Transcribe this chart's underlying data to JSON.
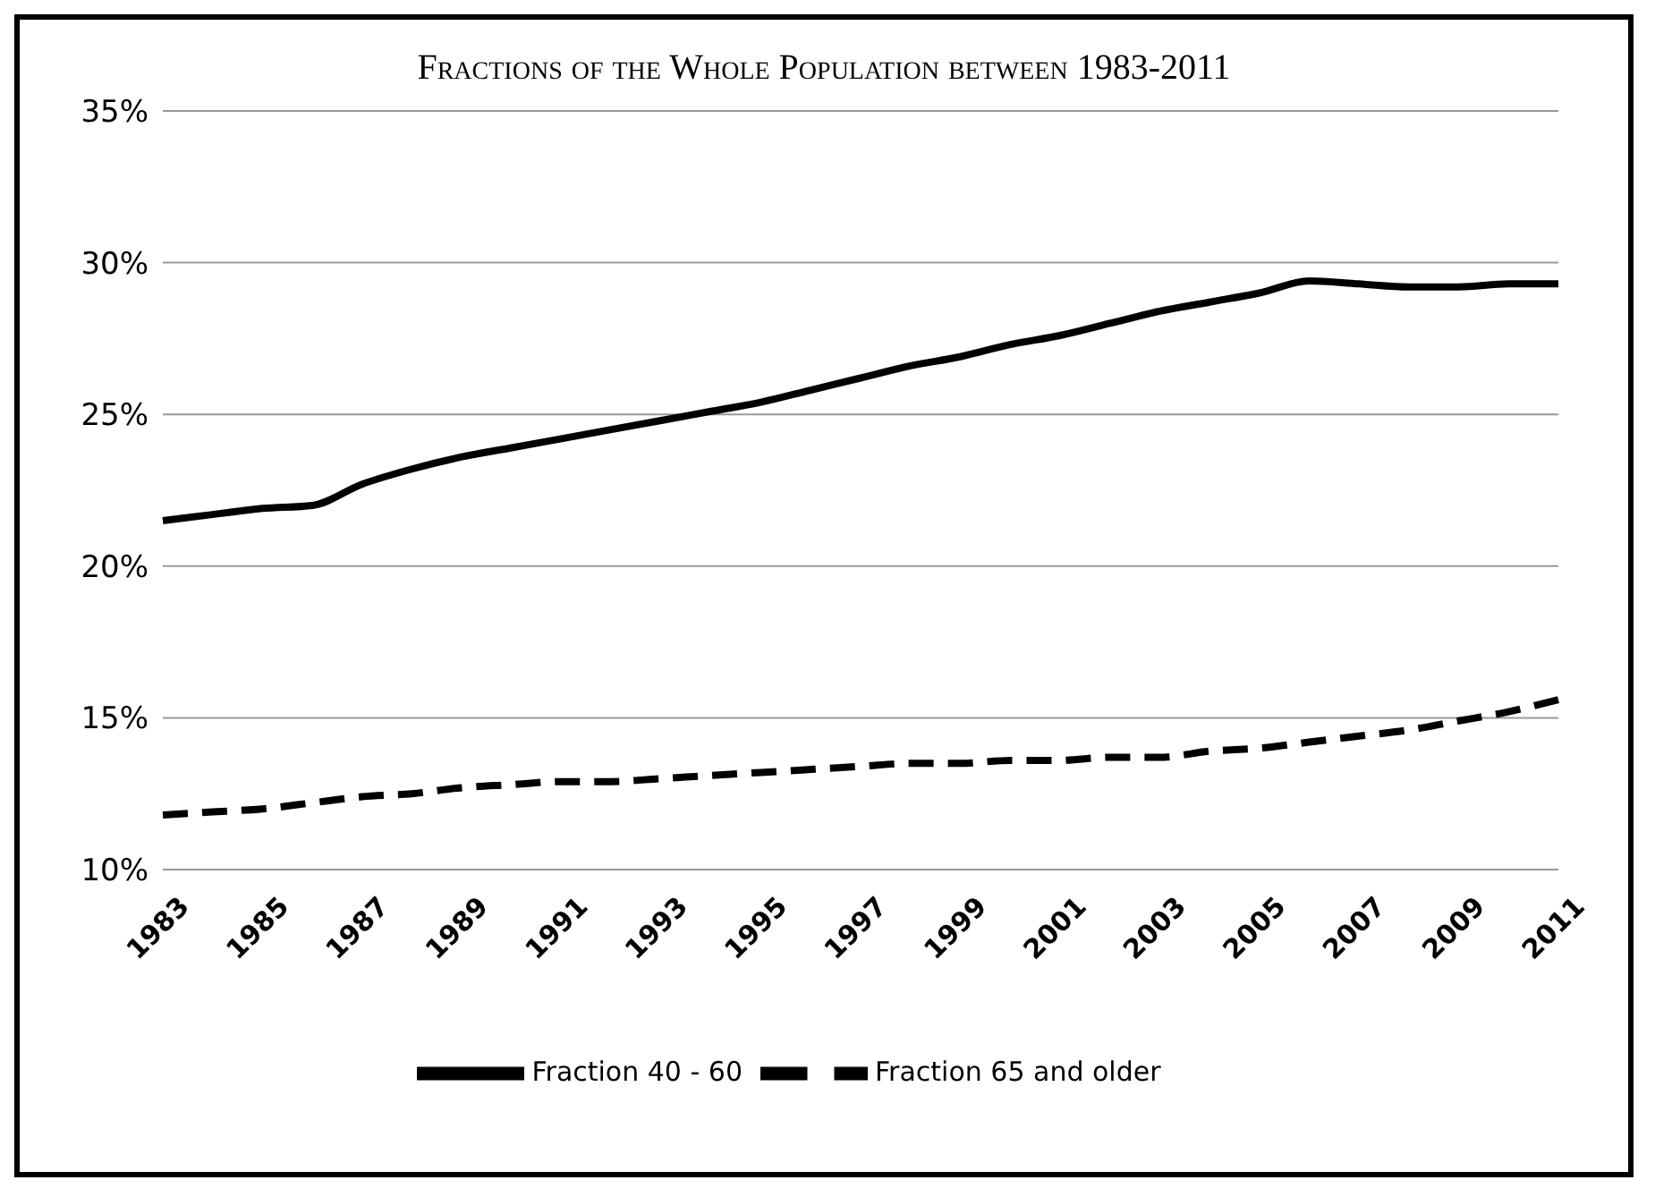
{
  "chart_data": {
    "type": "line",
    "title": "Fractions of the Whole Population between 1983-2011",
    "categories": [
      "1983",
      null,
      "1985",
      null,
      "1987",
      null,
      "1989",
      null,
      "1991",
      null,
      "1993",
      null,
      "1995",
      null,
      "1997",
      null,
      "1999",
      null,
      "2001",
      null,
      "2003",
      null,
      "2005",
      null,
      "2007",
      null,
      "2009",
      null,
      "2011"
    ],
    "series": [
      {
        "name": "Fraction 40 - 60",
        "color": "#000000",
        "line_style": "solid",
        "values": [
          21.5,
          21.7,
          21.9,
          22.0,
          22.7,
          23.2,
          23.6,
          23.9,
          24.2,
          24.5,
          24.8,
          25.1,
          25.4,
          25.8,
          26.2,
          26.6,
          26.9,
          27.3,
          27.6,
          28.0,
          28.4,
          28.7,
          29.0,
          29.4,
          29.3,
          29.2,
          29.2,
          29.3,
          29.3
        ]
      },
      {
        "name": "Fraction 65 and older",
        "color": "#000000",
        "line_style": "dashed",
        "values": [
          11.8,
          11.9,
          12.0,
          12.2,
          12.4,
          12.5,
          12.7,
          12.8,
          12.9,
          12.9,
          13.0,
          13.1,
          13.2,
          13.3,
          13.4,
          13.5,
          13.5,
          13.6,
          13.6,
          13.7,
          13.7,
          13.9,
          14.0,
          14.2,
          14.4,
          14.6,
          14.9,
          15.2,
          15.6
        ]
      }
    ],
    "ylim": [
      10,
      35
    ],
    "yticks": [
      {
        "value": 10,
        "label": "10%"
      },
      {
        "value": 15,
        "label": "15%"
      },
      {
        "value": 20,
        "label": "20%"
      },
      {
        "value": 25,
        "label": "25%"
      },
      {
        "value": 30,
        "label": "30%"
      },
      {
        "value": 35,
        "label": "35%"
      }
    ],
    "grid": "y",
    "legend": "bottom",
    "marker": "none"
  }
}
